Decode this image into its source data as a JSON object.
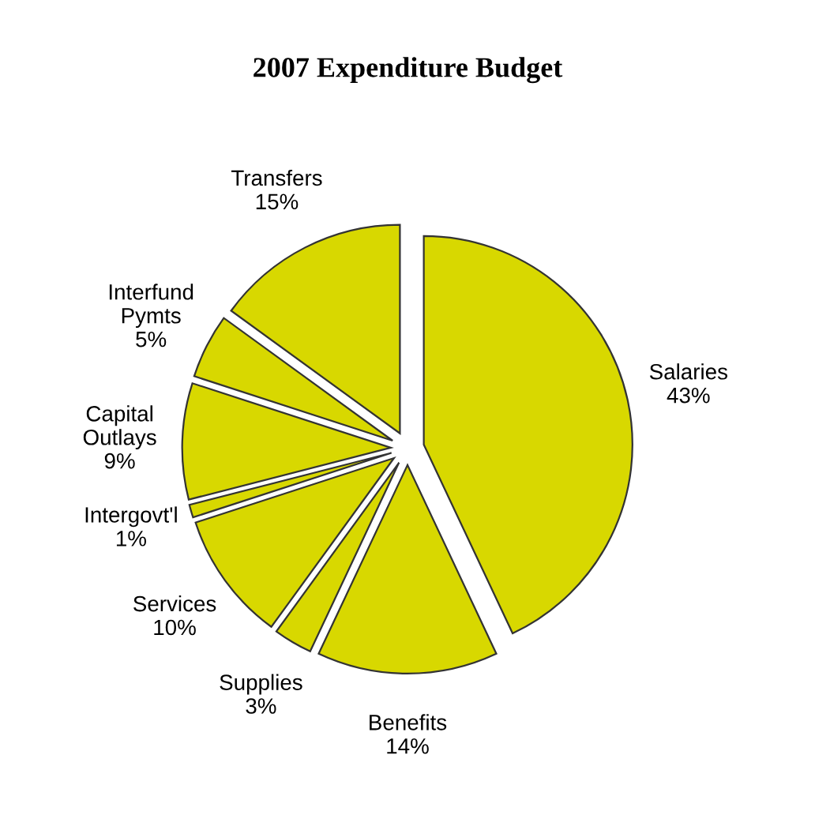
{
  "chart_data": {
    "type": "pie",
    "title": "2007 Expenditure Budget",
    "categories": [
      "Salaries",
      "Benefits",
      "Supplies",
      "Services",
      "Intergovt'l",
      "Capital Outlays",
      "Interfund Pymts",
      "Transfers"
    ],
    "values": [
      43,
      14,
      3,
      10,
      1,
      9,
      5,
      15
    ],
    "value_labels": [
      "43%",
      "14%",
      "3%",
      "10%",
      "1%",
      "9%",
      "5%",
      "15%"
    ],
    "colors": [
      "#d8d800",
      "#d8d800",
      "#d8d800",
      "#d8d800",
      "#d8d800",
      "#d8d800",
      "#d8d800",
      "#d8d800"
    ]
  }
}
